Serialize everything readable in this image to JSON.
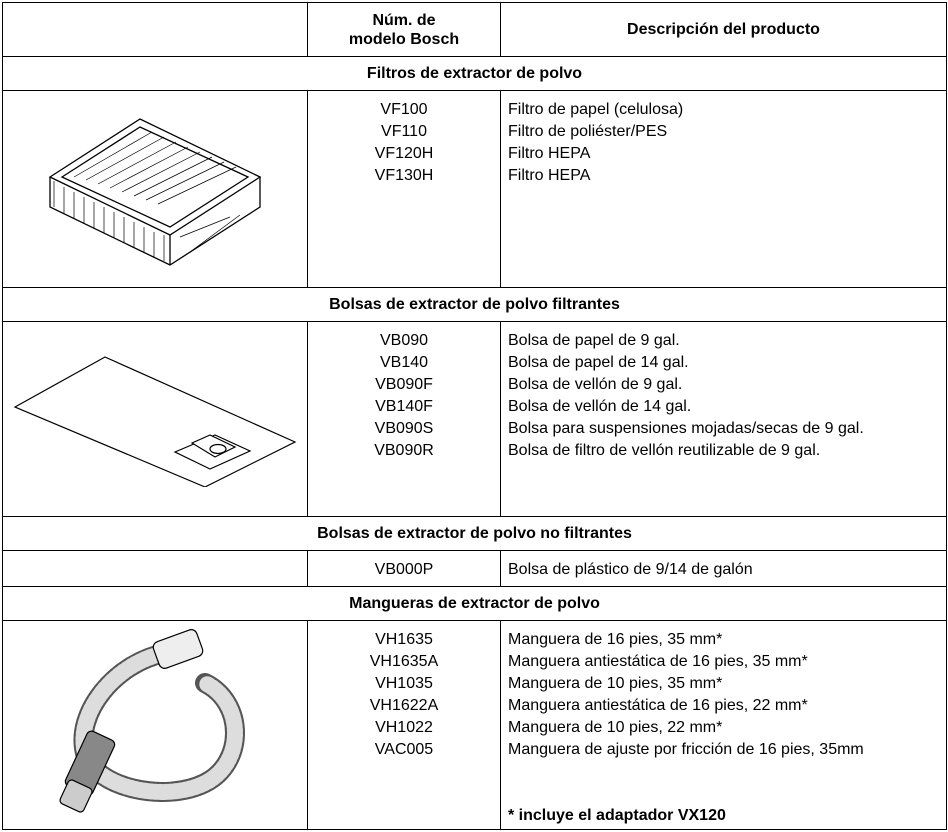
{
  "table": {
    "header": [
      "",
      "Núm. de modelo Bosch",
      "Descripción del producto"
    ],
    "sections": [
      {
        "title": "Filtros de extractor de polvo",
        "items": [
          {
            "model": "VF100",
            "description": "Filtro de papel (celulosa)"
          },
          {
            "model": "VF110",
            "description": "Filtro de poliéster/PES"
          },
          {
            "model": "VF120H",
            "description": "Filtro HEPA"
          },
          {
            "model": "VF130H",
            "description": "Filtro HEPA"
          }
        ]
      },
      {
        "title": "Bolsas de extractor de polvo filtrantes",
        "items": [
          {
            "model": "VB090",
            "description": "Bolsa de papel de 9 gal."
          },
          {
            "model": "VB140",
            "description": "Bolsa de papel de 14 gal."
          },
          {
            "model": "VB090F",
            "description": "Bolsa de vellón de 9 gal."
          },
          {
            "model": "VB140F",
            "description": "Bolsa de vellón de 14 gal."
          },
          {
            "model": "VB090S",
            "description": "Bolsa para suspensiones mojadas/secas de 9 gal."
          },
          {
            "model": "VB090R",
            "description": "Bolsa de filtro de vellón reutilizable de 9 gal."
          }
        ]
      },
      {
        "title": "Bolsas de extractor de polvo no filtrantes",
        "items": [
          {
            "model": "VB000P",
            "description": "Bolsa de plástico de 9/14 de galón"
          }
        ]
      },
      {
        "title": "Mangueras de extractor de polvo",
        "items": [
          {
            "model": "VH1635",
            "description": "Manguera de 16 pies, 35 mm*"
          },
          {
            "model": "VH1635A",
            "description": "Manguera antiestática de 16 pies, 35 mm*"
          },
          {
            "model": "VH1035",
            "description": "Manguera de 10 pies, 35 mm*"
          },
          {
            "model": "VH1622A",
            "description": "Manguera antiestática de 16 pies, 22 mm*"
          },
          {
            "model": "VH1022",
            "description": "Manguera de 10 pies, 22 mm*"
          },
          {
            "model": "VAC005",
            "description": "Manguera de ajuste por fricción de 16 pies, 35mm"
          }
        ],
        "note": "* incluye el adaptador VX120"
      }
    ]
  }
}
